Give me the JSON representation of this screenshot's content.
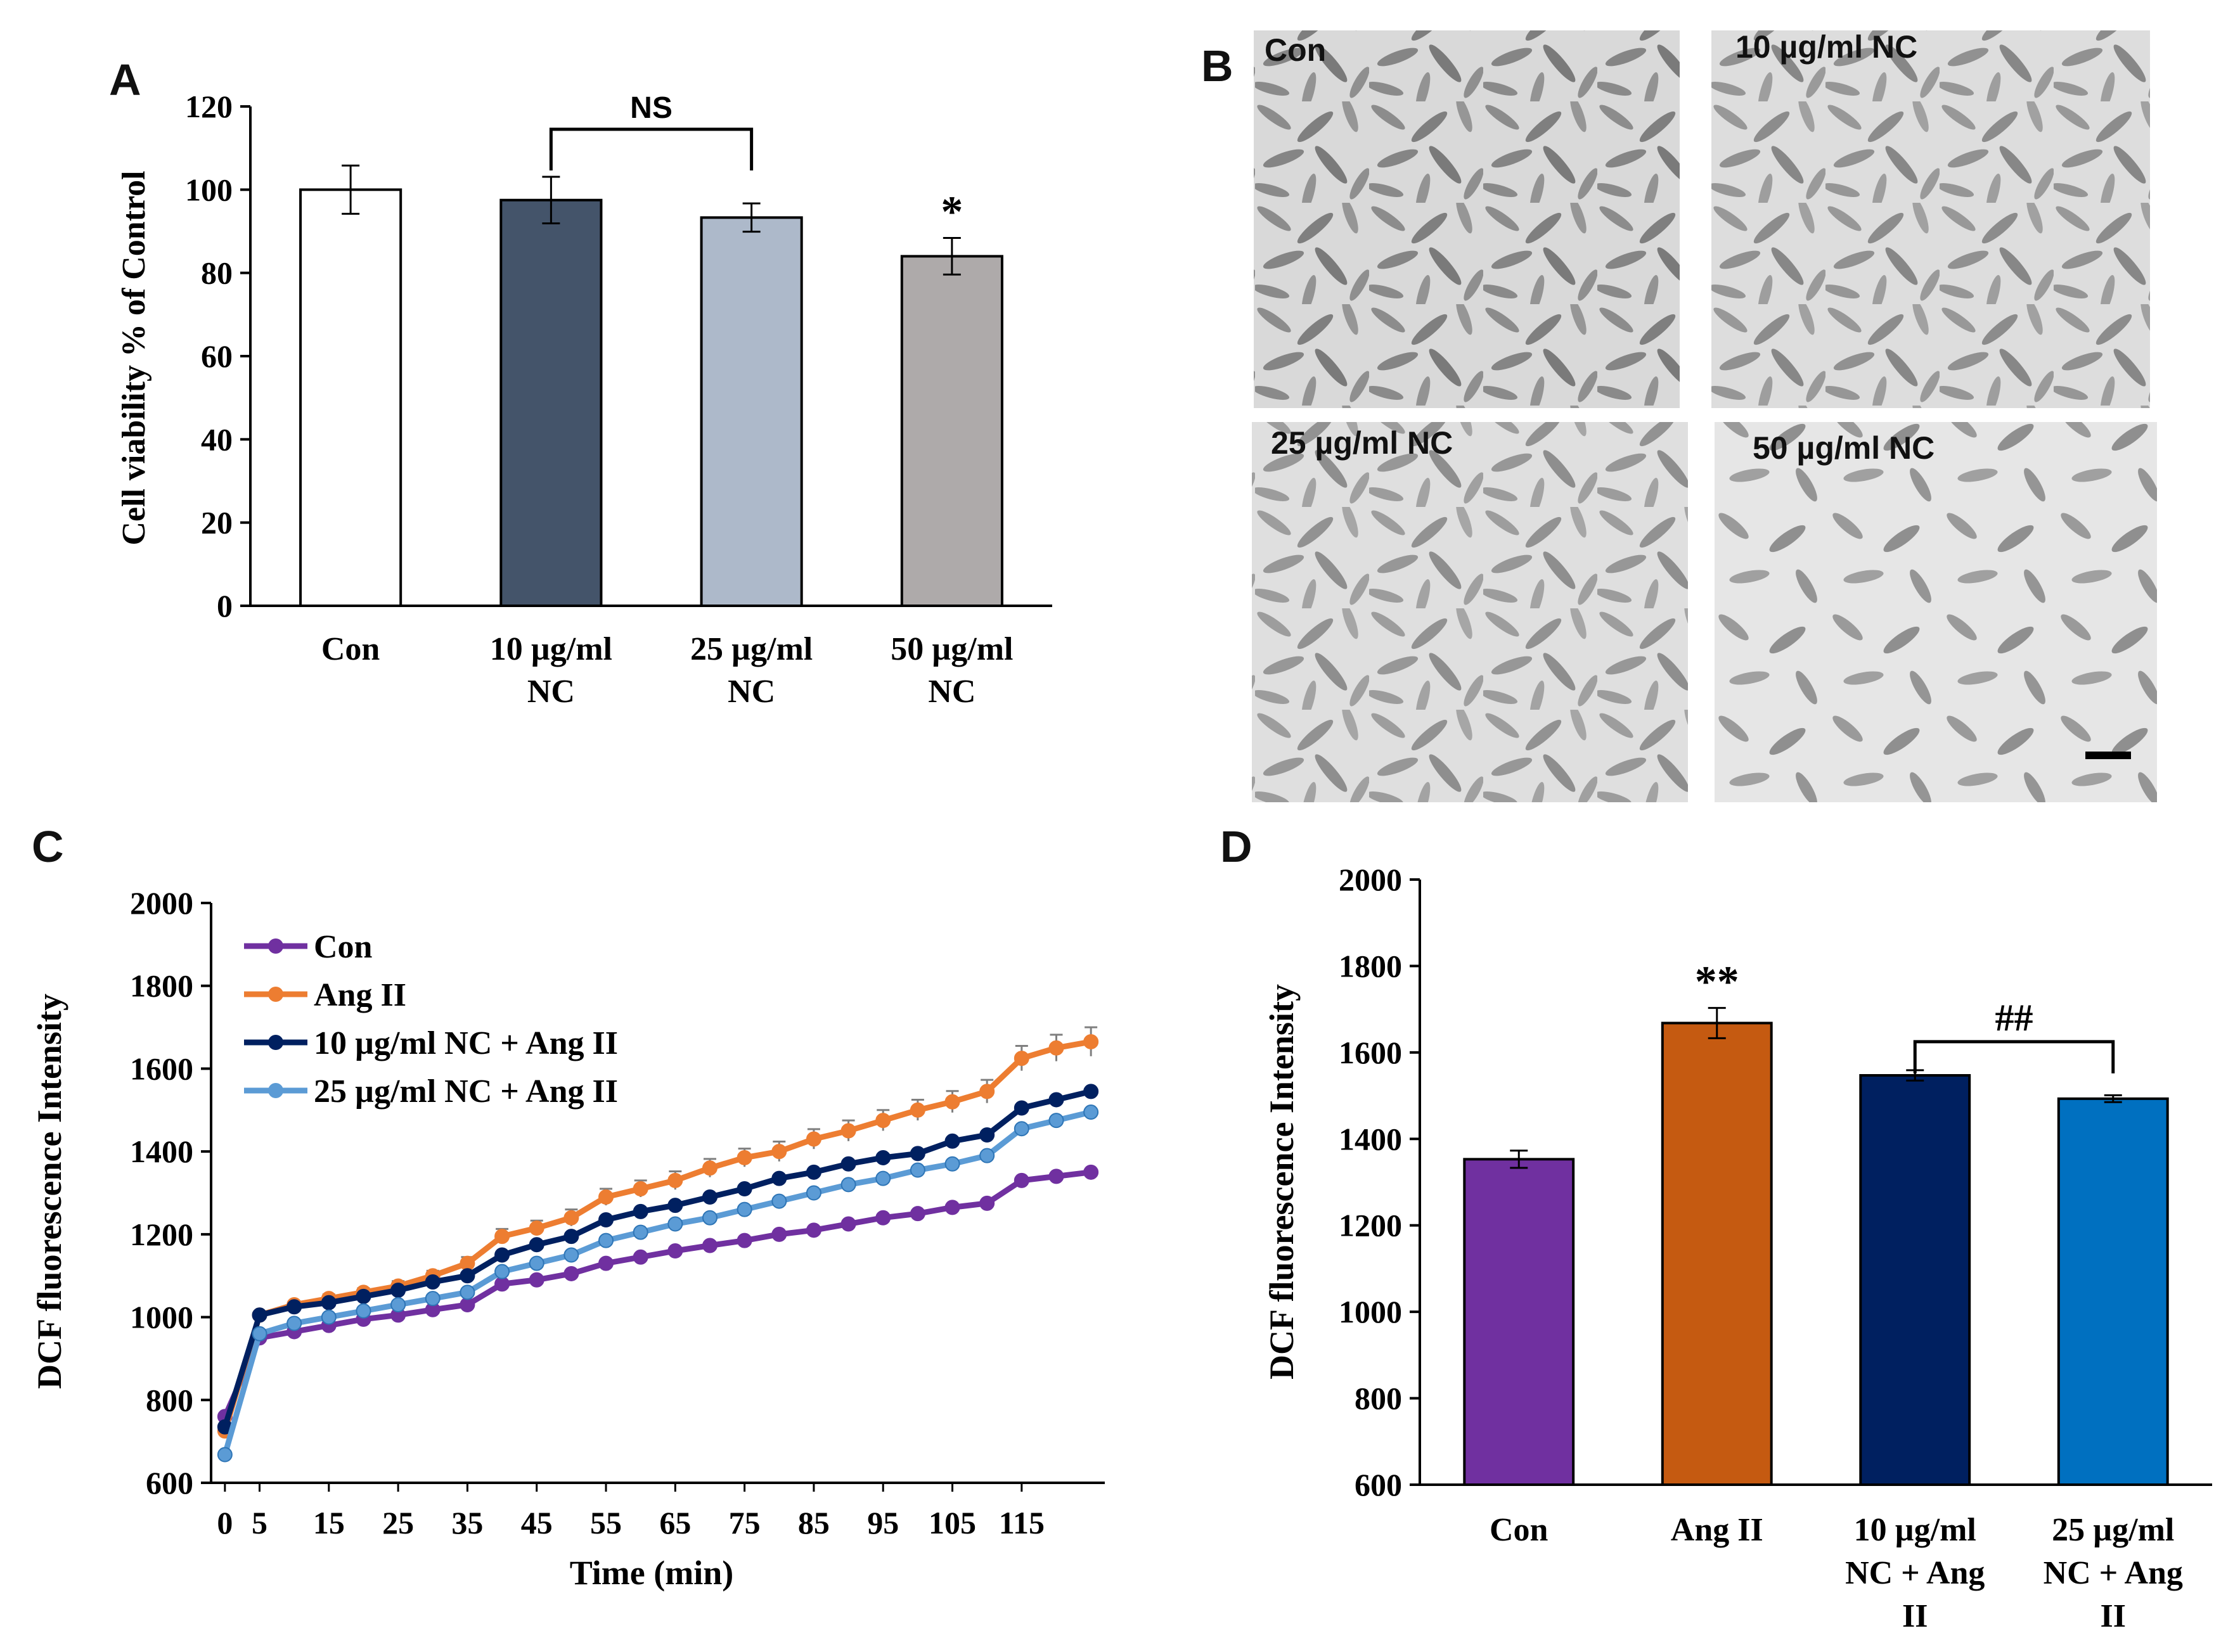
{
  "panels": [
    {
      "id": "A",
      "label": "A"
    },
    {
      "id": "B",
      "label": "B"
    },
    {
      "id": "C",
      "label": "C"
    },
    {
      "id": "D",
      "label": "D"
    }
  ],
  "chart_data": [
    {
      "panel": "A",
      "type": "bar",
      "categories": [
        [
          "Con"
        ],
        [
          "10 µg/ml",
          "NC"
        ],
        [
          "25 µg/ml",
          "NC"
        ],
        [
          "50 µg/ml",
          "NC"
        ]
      ],
      "values": [
        100,
        97.5,
        93.3,
        84
      ],
      "errors": [
        5.8,
        5.6,
        3.4,
        4.4
      ],
      "colors": [
        "#ffffff",
        "#44546a",
        "#adb9ca",
        "#aeaaaa"
      ],
      "ylabel": "Cell viability % of Control",
      "ylim": [
        0,
        120
      ],
      "yticks": [
        0,
        20,
        40,
        60,
        80,
        100,
        120
      ],
      "annotations": [
        {
          "text": "NS",
          "bracket": [
            1,
            2
          ]
        },
        {
          "text": "*",
          "category": 3
        }
      ]
    },
    {
      "panel": "C",
      "type": "line",
      "x": [
        0,
        5,
        10,
        15,
        20,
        25,
        30,
        35,
        40,
        45,
        50,
        55,
        60,
        65,
        70,
        75,
        80,
        85,
        90,
        95,
        100,
        105,
        110,
        115,
        120,
        125
      ],
      "xticks": [
        0,
        5,
        15,
        25,
        35,
        45,
        55,
        65,
        75,
        85,
        95,
        105,
        115
      ],
      "xlabel": "Time (min)",
      "ylabel": "DCF fluorescence Intensity",
      "ylim": [
        600,
        2000
      ],
      "yticks": [
        600,
        800,
        1000,
        1200,
        1400,
        1600,
        1800,
        2000
      ],
      "legend": "top-left",
      "series": [
        {
          "name": "Con",
          "color": "#7030a0",
          "values": [
            760,
            950,
            965,
            980,
            995,
            1005,
            1018,
            1030,
            1080,
            1090,
            1105,
            1130,
            1145,
            1160,
            1173,
            1185,
            1200,
            1210,
            1225,
            1240,
            1250,
            1265,
            1275,
            1330,
            1340,
            1350
          ]
        },
        {
          "name": "Ang II",
          "color": "#ed7d31",
          "values": [
            725,
            1005,
            1030,
            1045,
            1060,
            1075,
            1100,
            1130,
            1195,
            1215,
            1240,
            1290,
            1310,
            1330,
            1360,
            1385,
            1400,
            1430,
            1450,
            1475,
            1500,
            1520,
            1545,
            1625,
            1650,
            1665
          ],
          "errors": [
            0,
            8,
            8,
            10,
            10,
            12,
            12,
            15,
            18,
            18,
            20,
            20,
            20,
            22,
            22,
            22,
            24,
            24,
            25,
            25,
            25,
            26,
            28,
            30,
            32,
            35
          ]
        },
        {
          "name": "10 µg/ml NC + Ang II",
          "color": "#002060",
          "values": [
            735,
            1005,
            1025,
            1035,
            1050,
            1065,
            1085,
            1100,
            1150,
            1175,
            1195,
            1235,
            1255,
            1270,
            1290,
            1310,
            1335,
            1350,
            1370,
            1385,
            1395,
            1425,
            1440,
            1505,
            1525,
            1545
          ]
        },
        {
          "name": "25 µg/ml NC + Ang II",
          "color": "#5b9bd5",
          "values": [
            668,
            960,
            985,
            1000,
            1015,
            1030,
            1045,
            1060,
            1110,
            1130,
            1150,
            1185,
            1205,
            1225,
            1240,
            1260,
            1280,
            1300,
            1320,
            1335,
            1355,
            1370,
            1390,
            1455,
            1475,
            1495
          ]
        }
      ]
    },
    {
      "panel": "D",
      "type": "bar",
      "categories": [
        [
          "Con"
        ],
        [
          "Ang II"
        ],
        [
          "10 µg/ml",
          "NC + Ang",
          "II"
        ],
        [
          "25 µg/ml",
          "NC + Ang",
          "II"
        ]
      ],
      "values": [
        1353,
        1668,
        1547,
        1493
      ],
      "errors": [
        20,
        35,
        12,
        8
      ],
      "colors": [
        "#7030a0",
        "#c55a11",
        "#002060",
        "#0070c0"
      ],
      "ylabel": "DCF fluorescence Intensity",
      "ylim": [
        600,
        2000
      ],
      "yticks": [
        600,
        800,
        1000,
        1200,
        1400,
        1600,
        1800,
        2000
      ],
      "annotations": [
        {
          "text": "**",
          "category": 1
        },
        {
          "text": "##",
          "bracket": [
            2,
            3
          ]
        }
      ]
    }
  ],
  "micrographs": {
    "labels": [
      "Con",
      "10 µg/ml NC",
      "25 µg/ml NC",
      "50 µg/ml NC"
    ],
    "densities": [
      1.0,
      0.9,
      0.8,
      0.6
    ]
  }
}
